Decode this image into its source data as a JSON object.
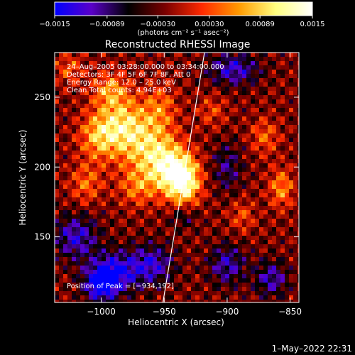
{
  "chart_data": {
    "type": "heatmap",
    "title": "Reconstructed RHESSI Image",
    "xlabel": "Heliocentric X (arcsec)",
    "ylabel": "Heliocentric Y (arcsec)",
    "xlim": [
      -1037,
      -843
    ],
    "ylim": [
      103,
      282
    ],
    "x_ticks": [
      -1000,
      -950,
      -900,
      -850
    ],
    "x_tick_labels": [
      "−1000",
      "−950",
      "−900",
      "−850"
    ],
    "y_ticks": [
      150,
      200,
      250
    ],
    "y_tick_labels": [
      "150",
      "200",
      "250"
    ],
    "colorbar": {
      "range": [
        -0.0015,
        0.0015
      ],
      "ticks": [
        -0.0015,
        -0.00089,
        -0.0003,
        0.0003,
        0.00089,
        0.0015
      ],
      "tick_labels": [
        "−0.0015",
        "−0.00089",
        "−0.00030",
        "0.00030",
        "0.00089",
        "0.0015"
      ],
      "unit_label": "(photons cm⁻² s⁻¹ asec⁻²)",
      "colormap": [
        "#0000ff",
        "#5a00c8",
        "#000000",
        "#7a0000",
        "#ff2a00",
        "#ff9a00",
        "#ffff80",
        "#ffffff"
      ]
    },
    "info_lines": [
      "24–Aug–2005 03:28:00.000 to 03:34:00.000",
      "Detectors: 3F 4F 5F 6F 7F 8F, Att 0",
      "Energy Range: 12.0 – 25.0 keV",
      "Clean     Total counts: 4.94E+03"
    ],
    "peak_label": "Position of Peak = [−934,192]",
    "peak_position": [
      -934,
      192
    ],
    "limb_line": [
      [
        -951,
        103
      ],
      [
        -918,
        282
      ]
    ],
    "intensity_blobs": [
      {
        "x": -934,
        "y": 190,
        "amp": 0.0016,
        "sx": 9,
        "sy": 12
      },
      {
        "x": -947,
        "y": 199,
        "amp": 0.0011,
        "sx": 11,
        "sy": 13
      },
      {
        "x": -963,
        "y": 212,
        "amp": 0.0009,
        "sx": 15,
        "sy": 16
      },
      {
        "x": -982,
        "y": 230,
        "amp": 0.00105,
        "sx": 14,
        "sy": 14
      },
      {
        "x": -1002,
        "y": 222,
        "amp": 0.0009,
        "sx": 11,
        "sy": 12
      },
      {
        "x": -993,
        "y": 255,
        "amp": 0.0008,
        "sx": 10,
        "sy": 9
      },
      {
        "x": -1012,
        "y": 188,
        "amp": 0.00065,
        "sx": 9,
        "sy": 10
      },
      {
        "x": -972,
        "y": 185,
        "amp": 0.0006,
        "sx": 10,
        "sy": 9
      },
      {
        "x": -953,
        "y": 243,
        "amp": 0.0006,
        "sx": 9,
        "sy": 12
      },
      {
        "x": -857,
        "y": 185,
        "amp": 0.0008,
        "sx": 7,
        "sy": 10
      },
      {
        "x": -870,
        "y": 222,
        "amp": 0.0006,
        "sx": 8,
        "sy": 9
      },
      {
        "x": -888,
        "y": 165,
        "amp": 0.0005,
        "sx": 7,
        "sy": 8
      },
      {
        "x": -912,
        "y": 240,
        "amp": 0.00045,
        "sx": 8,
        "sy": 8
      },
      {
        "x": -1025,
        "y": 270,
        "amp": 0.00055,
        "sx": 8,
        "sy": 8
      },
      {
        "x": -1020,
        "y": 150,
        "amp": -0.0009,
        "sx": 12,
        "sy": 11
      },
      {
        "x": -990,
        "y": 125,
        "amp": -0.0011,
        "sx": 14,
        "sy": 10
      },
      {
        "x": -1000,
        "y": 115,
        "amp": -0.0012,
        "sx": 9,
        "sy": 8
      },
      {
        "x": -960,
        "y": 130,
        "amp": -0.0009,
        "sx": 12,
        "sy": 10
      },
      {
        "x": -900,
        "y": 130,
        "amp": -0.0008,
        "sx": 10,
        "sy": 10
      },
      {
        "x": -865,
        "y": 120,
        "amp": -0.0008,
        "sx": 9,
        "sy": 9
      },
      {
        "x": -895,
        "y": 270,
        "amp": -0.0009,
        "sx": 14,
        "sy": 8
      },
      {
        "x": -900,
        "y": 200,
        "amp": -0.0006,
        "sx": 8,
        "sy": 12
      },
      {
        "x": -935,
        "y": 165,
        "amp": -0.0005,
        "sx": 8,
        "sy": 6
      }
    ],
    "background_level": -0.00025,
    "ripple_amplitude": 0.00042
  },
  "footer": {
    "timestamp": "1–May–2022 22:31"
  }
}
